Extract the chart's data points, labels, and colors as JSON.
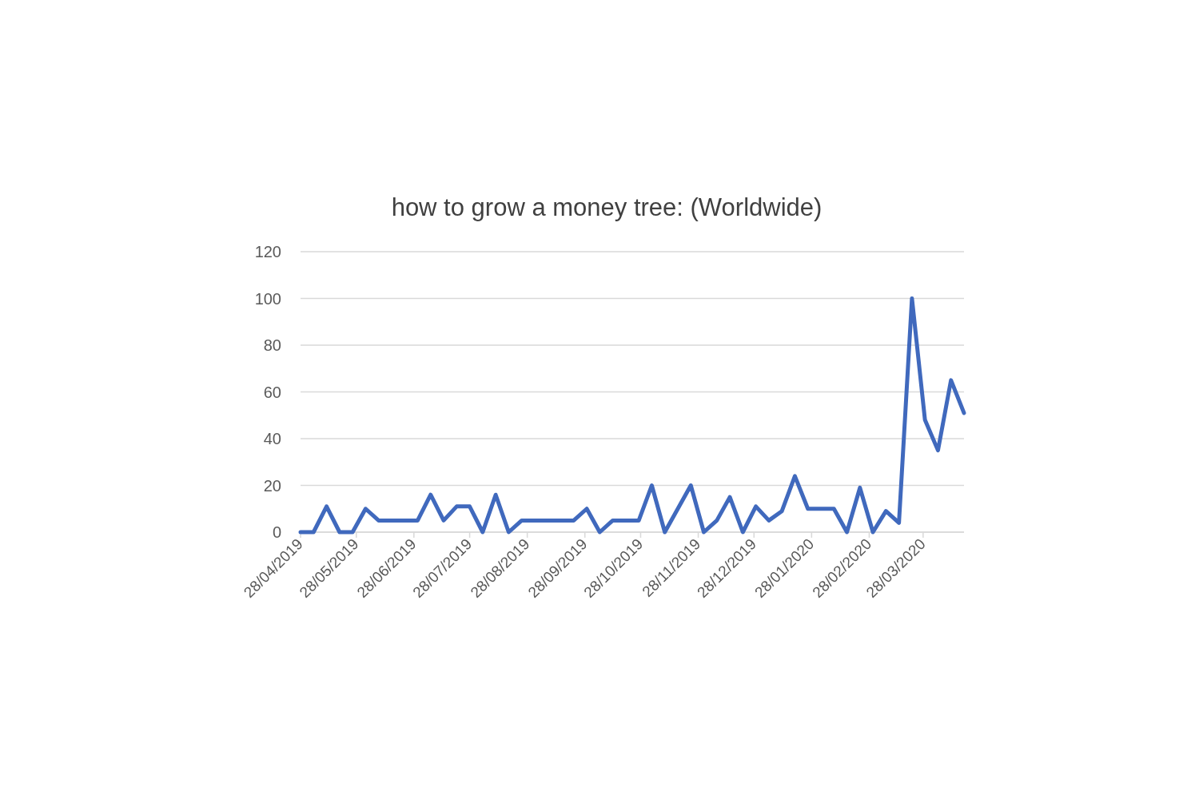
{
  "chart_data": {
    "type": "line",
    "title": "how to grow a money tree: (Worldwide)",
    "x": [
      "2019-04-28",
      "2019-05-05",
      "2019-05-12",
      "2019-05-19",
      "2019-05-26",
      "2019-06-02",
      "2019-06-09",
      "2019-06-16",
      "2019-06-23",
      "2019-06-30",
      "2019-07-07",
      "2019-07-14",
      "2019-07-21",
      "2019-07-28",
      "2019-08-04",
      "2019-08-11",
      "2019-08-18",
      "2019-08-25",
      "2019-09-01",
      "2019-09-08",
      "2019-09-15",
      "2019-09-22",
      "2019-09-29",
      "2019-10-06",
      "2019-10-13",
      "2019-10-20",
      "2019-10-27",
      "2019-11-03",
      "2019-11-10",
      "2019-11-17",
      "2019-11-24",
      "2019-12-01",
      "2019-12-08",
      "2019-12-15",
      "2019-12-22",
      "2019-12-29",
      "2020-01-05",
      "2020-01-12",
      "2020-01-19",
      "2020-01-26",
      "2020-02-02",
      "2020-02-09",
      "2020-02-16",
      "2020-02-23",
      "2020-03-01",
      "2020-03-08",
      "2020-03-15",
      "2020-03-22",
      "2020-03-29",
      "2020-04-05",
      "2020-04-12",
      "2020-04-19"
    ],
    "series": [
      {
        "color": "#4069bd",
        "values": [
          0,
          0,
          11,
          0,
          0,
          10,
          5,
          5,
          5,
          5,
          16,
          5,
          11,
          11,
          0,
          16,
          0,
          5,
          5,
          5,
          5,
          5,
          10,
          0,
          5,
          5,
          5,
          20,
          0,
          10,
          20,
          0,
          5,
          15,
          0,
          11,
          5,
          9,
          24,
          10,
          10,
          10,
          0,
          19,
          0,
          9,
          4,
          100,
          48,
          35,
          65,
          51
        ]
      }
    ],
    "xlim": [
      "2019-04-28",
      "2020-04-19"
    ],
    "xticks": [
      {
        "value": "2019-04-28",
        "label": "28/04/2019"
      },
      {
        "value": "2019-05-28",
        "label": "28/05/2019"
      },
      {
        "value": "2019-06-28",
        "label": "28/06/2019"
      },
      {
        "value": "2019-07-28",
        "label": "28/07/2019"
      },
      {
        "value": "2019-08-28",
        "label": "28/08/2019"
      },
      {
        "value": "2019-09-28",
        "label": "28/09/2019"
      },
      {
        "value": "2019-10-28",
        "label": "28/10/2019"
      },
      {
        "value": "2019-11-28",
        "label": "28/11/2019"
      },
      {
        "value": "2019-12-28",
        "label": "28/12/2019"
      },
      {
        "value": "2020-01-28",
        "label": "28/01/2020"
      },
      {
        "value": "2020-02-28",
        "label": "28/02/2020"
      },
      {
        "value": "2020-03-28",
        "label": "28/03/2020"
      }
    ],
    "ylim": [
      0,
      120
    ],
    "yticks": [
      0,
      20,
      40,
      60,
      80,
      100,
      120
    ],
    "grid": "y",
    "line_style": "solid"
  }
}
